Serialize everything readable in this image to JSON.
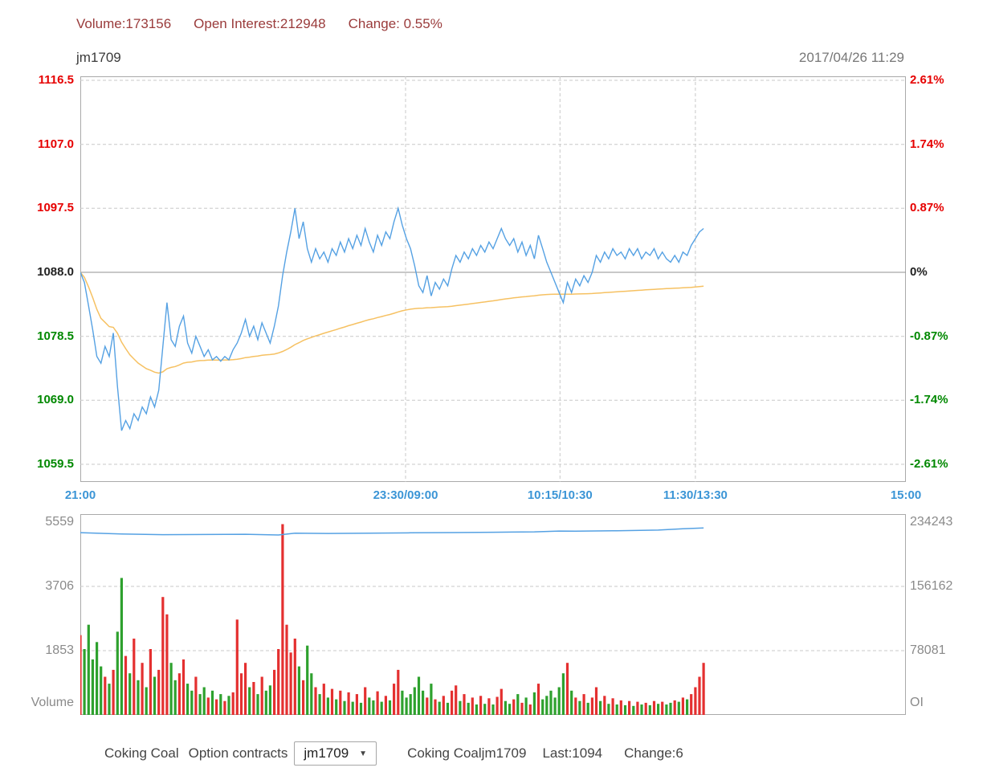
{
  "header": {
    "volume": "Volume:173156",
    "open_interest": "Open Interest:212948",
    "change": "Change: 0.55%"
  },
  "chart_header": {
    "symbol": "jm1709",
    "datetime": "2017/04/26 11:29"
  },
  "footer": {
    "product": "Coking Coal",
    "contracts_label": "Option contracts",
    "select_value": "jm1709",
    "select_options": [
      "jm1709"
    ],
    "instrument": "Coking Coaljm1709",
    "last": "Last:1094",
    "change": "Change:6"
  },
  "colors": {
    "stats_text": "#9a3b3b",
    "time_label": "#3b95d6",
    "price_line": "#55a1e3",
    "avg_line": "#f6c162",
    "bar_up": "#e43030",
    "bar_down": "#2ea12e",
    "panel_label": "#8a8a8a",
    "grid": "#c8c8c8",
    "border": "#aaaaaa",
    "zero_line": "#909090",
    "up_text": "#e60000",
    "down_text": "#008800",
    "neutral_text": "#222222"
  },
  "chart_data": [
    {
      "type": "line",
      "title": "jm1709 intraday price",
      "prev_close": 1088,
      "last": 1094,
      "x_step": 0.005,
      "x_axis": {
        "labels": [
          "21:00",
          "23:30/09:00",
          "10:15/10:30",
          "11:30/13:30",
          "15:00"
        ],
        "label_positions": [
          0,
          0.394,
          0.581,
          0.745,
          1
        ],
        "gridline_positions": [
          0.394,
          0.581,
          0.745
        ]
      },
      "y_axis_left": {
        "min": 1059.5,
        "max": 1116.5,
        "labels": [
          "1116.5",
          "1107.0",
          "1097.5",
          "1088.0",
          "1078.5",
          "1069.0",
          "1059.5"
        ],
        "colors": [
          "#e60000",
          "#e60000",
          "#e60000",
          "#222222",
          "#008800",
          "#008800",
          "#008800"
        ]
      },
      "y_axis_right": {
        "labels": [
          "2.61%",
          "1.74%",
          "0.87%",
          "0%",
          "-0.87%",
          "-1.74%",
          "-2.61%"
        ],
        "colors": [
          "#e60000",
          "#e60000",
          "#e60000",
          "#222222",
          "#008800",
          "#008800",
          "#008800"
        ]
      },
      "series": [
        {
          "name": "price",
          "color": "#55a1e3",
          "values": [
            1088,
            1086.5,
            1083,
            1079.5,
            1075.5,
            1074.5,
            1077,
            1075.5,
            1079,
            1071,
            1064.5,
            1066,
            1064.8,
            1067,
            1066,
            1068,
            1067,
            1069.5,
            1068,
            1070.5,
            1077,
            1083.5,
            1078,
            1077,
            1080,
            1081.5,
            1077.5,
            1076,
            1078.5,
            1077,
            1075.5,
            1076.5,
            1075,
            1075.5,
            1074.8,
            1075.5,
            1075,
            1076.5,
            1077.5,
            1079,
            1081,
            1078.5,
            1080,
            1078,
            1080.5,
            1079,
            1077.5,
            1080,
            1083,
            1087.5,
            1091,
            1094,
            1097.5,
            1093,
            1095.5,
            1091.5,
            1089.5,
            1091.5,
            1090,
            1091,
            1089.5,
            1091.5,
            1090.5,
            1092.5,
            1091,
            1093,
            1091.5,
            1093.5,
            1092,
            1094.5,
            1092.5,
            1091,
            1093.5,
            1092,
            1094,
            1093,
            1095.5,
            1097.5,
            1095,
            1093,
            1091.5,
            1089,
            1086,
            1085,
            1087.5,
            1084.5,
            1086.5,
            1085.5,
            1087,
            1086,
            1088.5,
            1090.5,
            1089.5,
            1091,
            1090,
            1091.5,
            1090.5,
            1092,
            1091,
            1092.5,
            1091.5,
            1093,
            1094.5,
            1093,
            1092,
            1093,
            1091,
            1092.5,
            1090.5,
            1092,
            1090,
            1093.5,
            1091.5,
            1089.5,
            1088,
            1086.5,
            1085,
            1083.5,
            1086.5,
            1085,
            1087,
            1086,
            1087.5,
            1086.5,
            1088,
            1090.5,
            1089.5,
            1091,
            1090,
            1091.5,
            1090.5,
            1091,
            1090,
            1091.5,
            1090.5,
            1091.5,
            1090,
            1091,
            1090.5,
            1091.5,
            1090,
            1091,
            1090,
            1089.5,
            1090.5,
            1089.5,
            1091,
            1090.5,
            1092,
            1093,
            1094,
            1094.5
          ]
        },
        {
          "name": "average",
          "color": "#f6c162",
          "derived": "cumulative_mean_of_price"
        }
      ]
    },
    {
      "type": "bar",
      "title": "volume and open interest",
      "y_axis_left": {
        "max": 5559,
        "labels": [
          "5559",
          "3706",
          "1853"
        ],
        "title": "Volume"
      },
      "y_axis_right": {
        "max": 234243,
        "labels": [
          "234243",
          "156162",
          "78081"
        ],
        "title": "OI"
      },
      "volumes": [
        2300,
        1900,
        2600,
        1600,
        2100,
        1400,
        1100,
        900,
        1300,
        2400,
        3950,
        1700,
        1200,
        2200,
        1000,
        1500,
        800,
        1900,
        1100,
        1300,
        3400,
        2900,
        1500,
        1000,
        1200,
        1600,
        900,
        700,
        1100,
        600,
        800,
        500,
        700,
        450,
        600,
        400,
        550,
        650,
        2750,
        1200,
        1500,
        800,
        950,
        600,
        1100,
        700,
        850,
        1300,
        1900,
        5500,
        2600,
        1800,
        2200,
        1400,
        1000,
        2000,
        1200,
        800,
        600,
        900,
        500,
        750,
        450,
        700,
        400,
        650,
        380,
        600,
        350,
        800,
        500,
        420,
        680,
        380,
        550,
        420,
        900,
        1300,
        700,
        500,
        600,
        800,
        1100,
        700,
        500,
        900,
        450,
        380,
        550,
        350,
        700,
        850,
        400,
        600,
        350,
        500,
        300,
        550,
        320,
        480,
        300,
        520,
        750,
        400,
        320,
        450,
        600,
        350,
        500,
        300,
        650,
        900,
        450,
        550,
        700,
        500,
        800,
        1200,
        1500,
        700,
        500,
        400,
        600,
        350,
        500,
        800,
        400,
        550,
        320,
        480,
        300,
        420,
        280,
        400,
        260,
        380,
        300,
        350,
        280,
        400,
        320,
        380,
        300,
        350,
        420,
        380,
        500,
        450,
        600,
        800,
        1100,
        1500
      ],
      "oi_line": {
        "name": "open_interest",
        "color": "#55a1e3",
        "points": [
          [
            0,
            221500
          ],
          [
            0.05,
            219800
          ],
          [
            0.1,
            219000
          ],
          [
            0.15,
            219200
          ],
          [
            0.2,
            219500
          ],
          [
            0.24,
            218600
          ],
          [
            0.26,
            220800
          ],
          [
            0.3,
            220500
          ],
          [
            0.35,
            220900
          ],
          [
            0.4,
            221300
          ],
          [
            0.45,
            221600
          ],
          [
            0.5,
            221900
          ],
          [
            0.55,
            222400
          ],
          [
            0.58,
            223400
          ],
          [
            0.6,
            223200
          ],
          [
            0.65,
            223800
          ],
          [
            0.7,
            224600
          ],
          [
            0.73,
            226100
          ],
          [
            0.755,
            227200
          ]
        ]
      }
    }
  ]
}
